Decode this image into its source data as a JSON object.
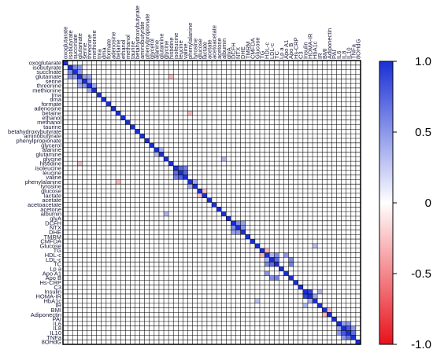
{
  "chart_data": {
    "type": "heatmap",
    "title": "",
    "variables": [
      "oxoglutarate",
      "isobutyrate",
      "succinate",
      "glutamate",
      "serine",
      "threonine",
      "methionine",
      "tma",
      "dma",
      "formate",
      "adenosine",
      "betaine",
      "ethanol",
      "methanol",
      "taurine",
      "betahydroxybutyrate",
      "aminobutyrate",
      "phenylpropionate",
      "glycerol",
      "alanine",
      "glutamine",
      "glycine",
      "histidine",
      "isoleucine",
      "leucine",
      "valine",
      "phenylalanine",
      "tyrosine",
      "glucose",
      "lactate",
      "acetate",
      "acetoacetate",
      "acetone",
      "albumin",
      "glyA",
      "DCFH",
      "NTX",
      "DHE",
      "TMRM",
      "CMFDA",
      "Glucose",
      "TG",
      "HDL-c",
      "LDL-c",
      "TC",
      "Lp a",
      "Apo A1",
      "Apo B",
      "Hs-CRP",
      "C3",
      "Insulin",
      "HOMA-IR",
      "HbA1c",
      "IR",
      "BMI",
      "Adiponectin",
      "PAI",
      "IL6",
      "IL8",
      "IL10",
      "TNFa",
      "8OHdG"
    ],
    "colorbar": {
      "ticks": [
        1.0,
        0.5,
        0,
        -0.5,
        -1.0
      ],
      "tick_labels": [
        "1.0",
        "0.5",
        "0",
        "-0.5",
        "-1.0"
      ],
      "range": [
        -1,
        1
      ],
      "colors": {
        "positive": "#1a2fd6",
        "zero": "#ffffff",
        "negative": "#e8111b"
      }
    },
    "diagonal_value": 1.0,
    "notable_correlations": [
      {
        "a": "isobutyrate",
        "b": "succinate",
        "r": 0.55
      },
      {
        "a": "isobutyrate",
        "b": "glutamate",
        "r": 0.5
      },
      {
        "a": "succinate",
        "b": "glutamate",
        "r": 0.5
      },
      {
        "a": "glutamate",
        "b": "serine",
        "r": 0.45
      },
      {
        "a": "serine",
        "b": "threonine",
        "r": 0.5
      },
      {
        "a": "threonine",
        "b": "methionine",
        "r": 0.4
      },
      {
        "a": "glutamate",
        "b": "threonine",
        "r": 0.4
      },
      {
        "a": "alanine",
        "b": "glutamine",
        "r": 0.35
      },
      {
        "a": "isoleucine",
        "b": "leucine",
        "r": 0.7
      },
      {
        "a": "leucine",
        "b": "valine",
        "r": 0.75
      },
      {
        "a": "isoleucine",
        "b": "valine",
        "r": 0.6
      },
      {
        "a": "phenylalanine",
        "b": "tyrosine",
        "r": 0.4
      },
      {
        "a": "DCFH",
        "b": "NTX",
        "r": 0.55
      },
      {
        "a": "NTX",
        "b": "DHE",
        "r": 0.5
      },
      {
        "a": "DCFH",
        "b": "DHE",
        "r": 0.45
      },
      {
        "a": "HDL-c",
        "b": "LDL-c",
        "r": 0.35
      },
      {
        "a": "LDL-c",
        "b": "TC",
        "r": 0.7
      },
      {
        "a": "HDL-c",
        "b": "TC",
        "r": 0.55
      },
      {
        "a": "TC",
        "b": "Apo B",
        "r": 0.6
      },
      {
        "a": "LDL-c",
        "b": "Apo B",
        "r": 0.55
      },
      {
        "a": "Apo A1",
        "b": "HDL-c",
        "r": 0.5
      },
      {
        "a": "Insulin",
        "b": "HOMA-IR",
        "r": 0.9
      },
      {
        "a": "HOMA-IR",
        "b": "HbA1c",
        "r": 0.4
      },
      {
        "a": "Insulin",
        "b": "IR",
        "r": 0.35
      },
      {
        "a": "IL6",
        "b": "IL8",
        "r": 0.45
      },
      {
        "a": "IL8",
        "b": "IL10",
        "r": 0.8
      },
      {
        "a": "IL10",
        "b": "TNFa",
        "r": 0.7
      },
      {
        "a": "IL6",
        "b": "IL10",
        "r": 0.5
      },
      {
        "a": "IL8",
        "b": "TNFa",
        "r": 0.5
      },
      {
        "a": "albumin",
        "b": "glycine",
        "r": 0.35
      },
      {
        "a": "phenylalanine",
        "b": "betaine",
        "r": -0.3
      },
      {
        "a": "histidine",
        "b": "glutamate",
        "r": -0.3
      },
      {
        "a": "glucose",
        "b": "lactate",
        "r": -0.25
      },
      {
        "a": "BMI",
        "b": "Adiponectin",
        "r": -0.3
      },
      {
        "a": "HDL-c",
        "b": "TG",
        "r": -0.3
      },
      {
        "a": "Glucose",
        "b": "HbA1c",
        "r": 0.3
      }
    ]
  }
}
